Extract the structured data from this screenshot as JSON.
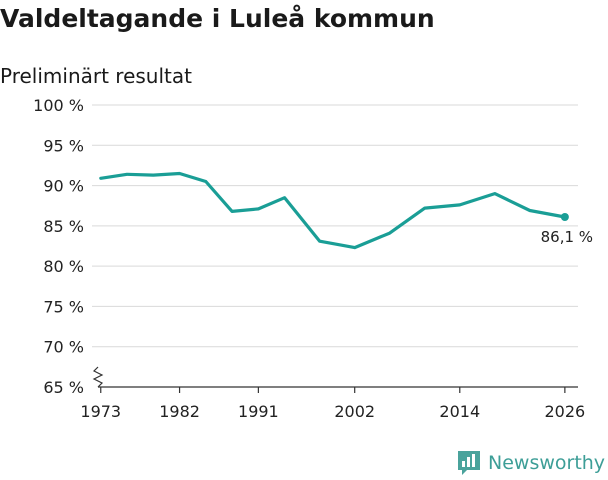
{
  "title": "Valdeltagande i Luleå kommun",
  "subtitle": "Preliminärt resultat",
  "brand": {
    "name": "Newsworthy",
    "color": "#3d9e97"
  },
  "chart_data": {
    "type": "line",
    "title": "Valdeltagande i Luleå kommun",
    "subtitle": "Preliminärt resultat",
    "xlabel": "",
    "ylabel": "",
    "ylim": [
      65,
      100
    ],
    "xlim": [
      1972,
      2027.5
    ],
    "y_ticks": [
      65,
      70,
      75,
      80,
      85,
      90,
      95,
      100
    ],
    "y_tick_labels": [
      "65 %",
      "70 %",
      "75 %",
      "80 %",
      "85 %",
      "90 %",
      "95 %",
      "100 %"
    ],
    "x_ticks": [
      1973,
      1982,
      1991,
      2002,
      2014,
      2026
    ],
    "x_tick_labels": [
      "1973",
      "1982",
      "1991",
      "2002",
      "2014",
      "2026"
    ],
    "grid": true,
    "axis_break": true,
    "series": [
      {
        "color": "#1a9e96",
        "x": [
          1973,
          1976,
          1979,
          1982,
          1985,
          1988,
          1991,
          1994,
          1998,
          2002,
          2006,
          2010,
          2014,
          2018,
          2022,
          2026
        ],
        "values": [
          90.9,
          91.4,
          91.3,
          91.5,
          90.5,
          86.8,
          87.1,
          88.5,
          83.1,
          82.3,
          84.1,
          87.2,
          87.6,
          89.0,
          86.9,
          86.1
        ]
      }
    ],
    "annotations": [
      {
        "x": 2026,
        "y": 86.1,
        "text": "86,1 %"
      }
    ]
  }
}
